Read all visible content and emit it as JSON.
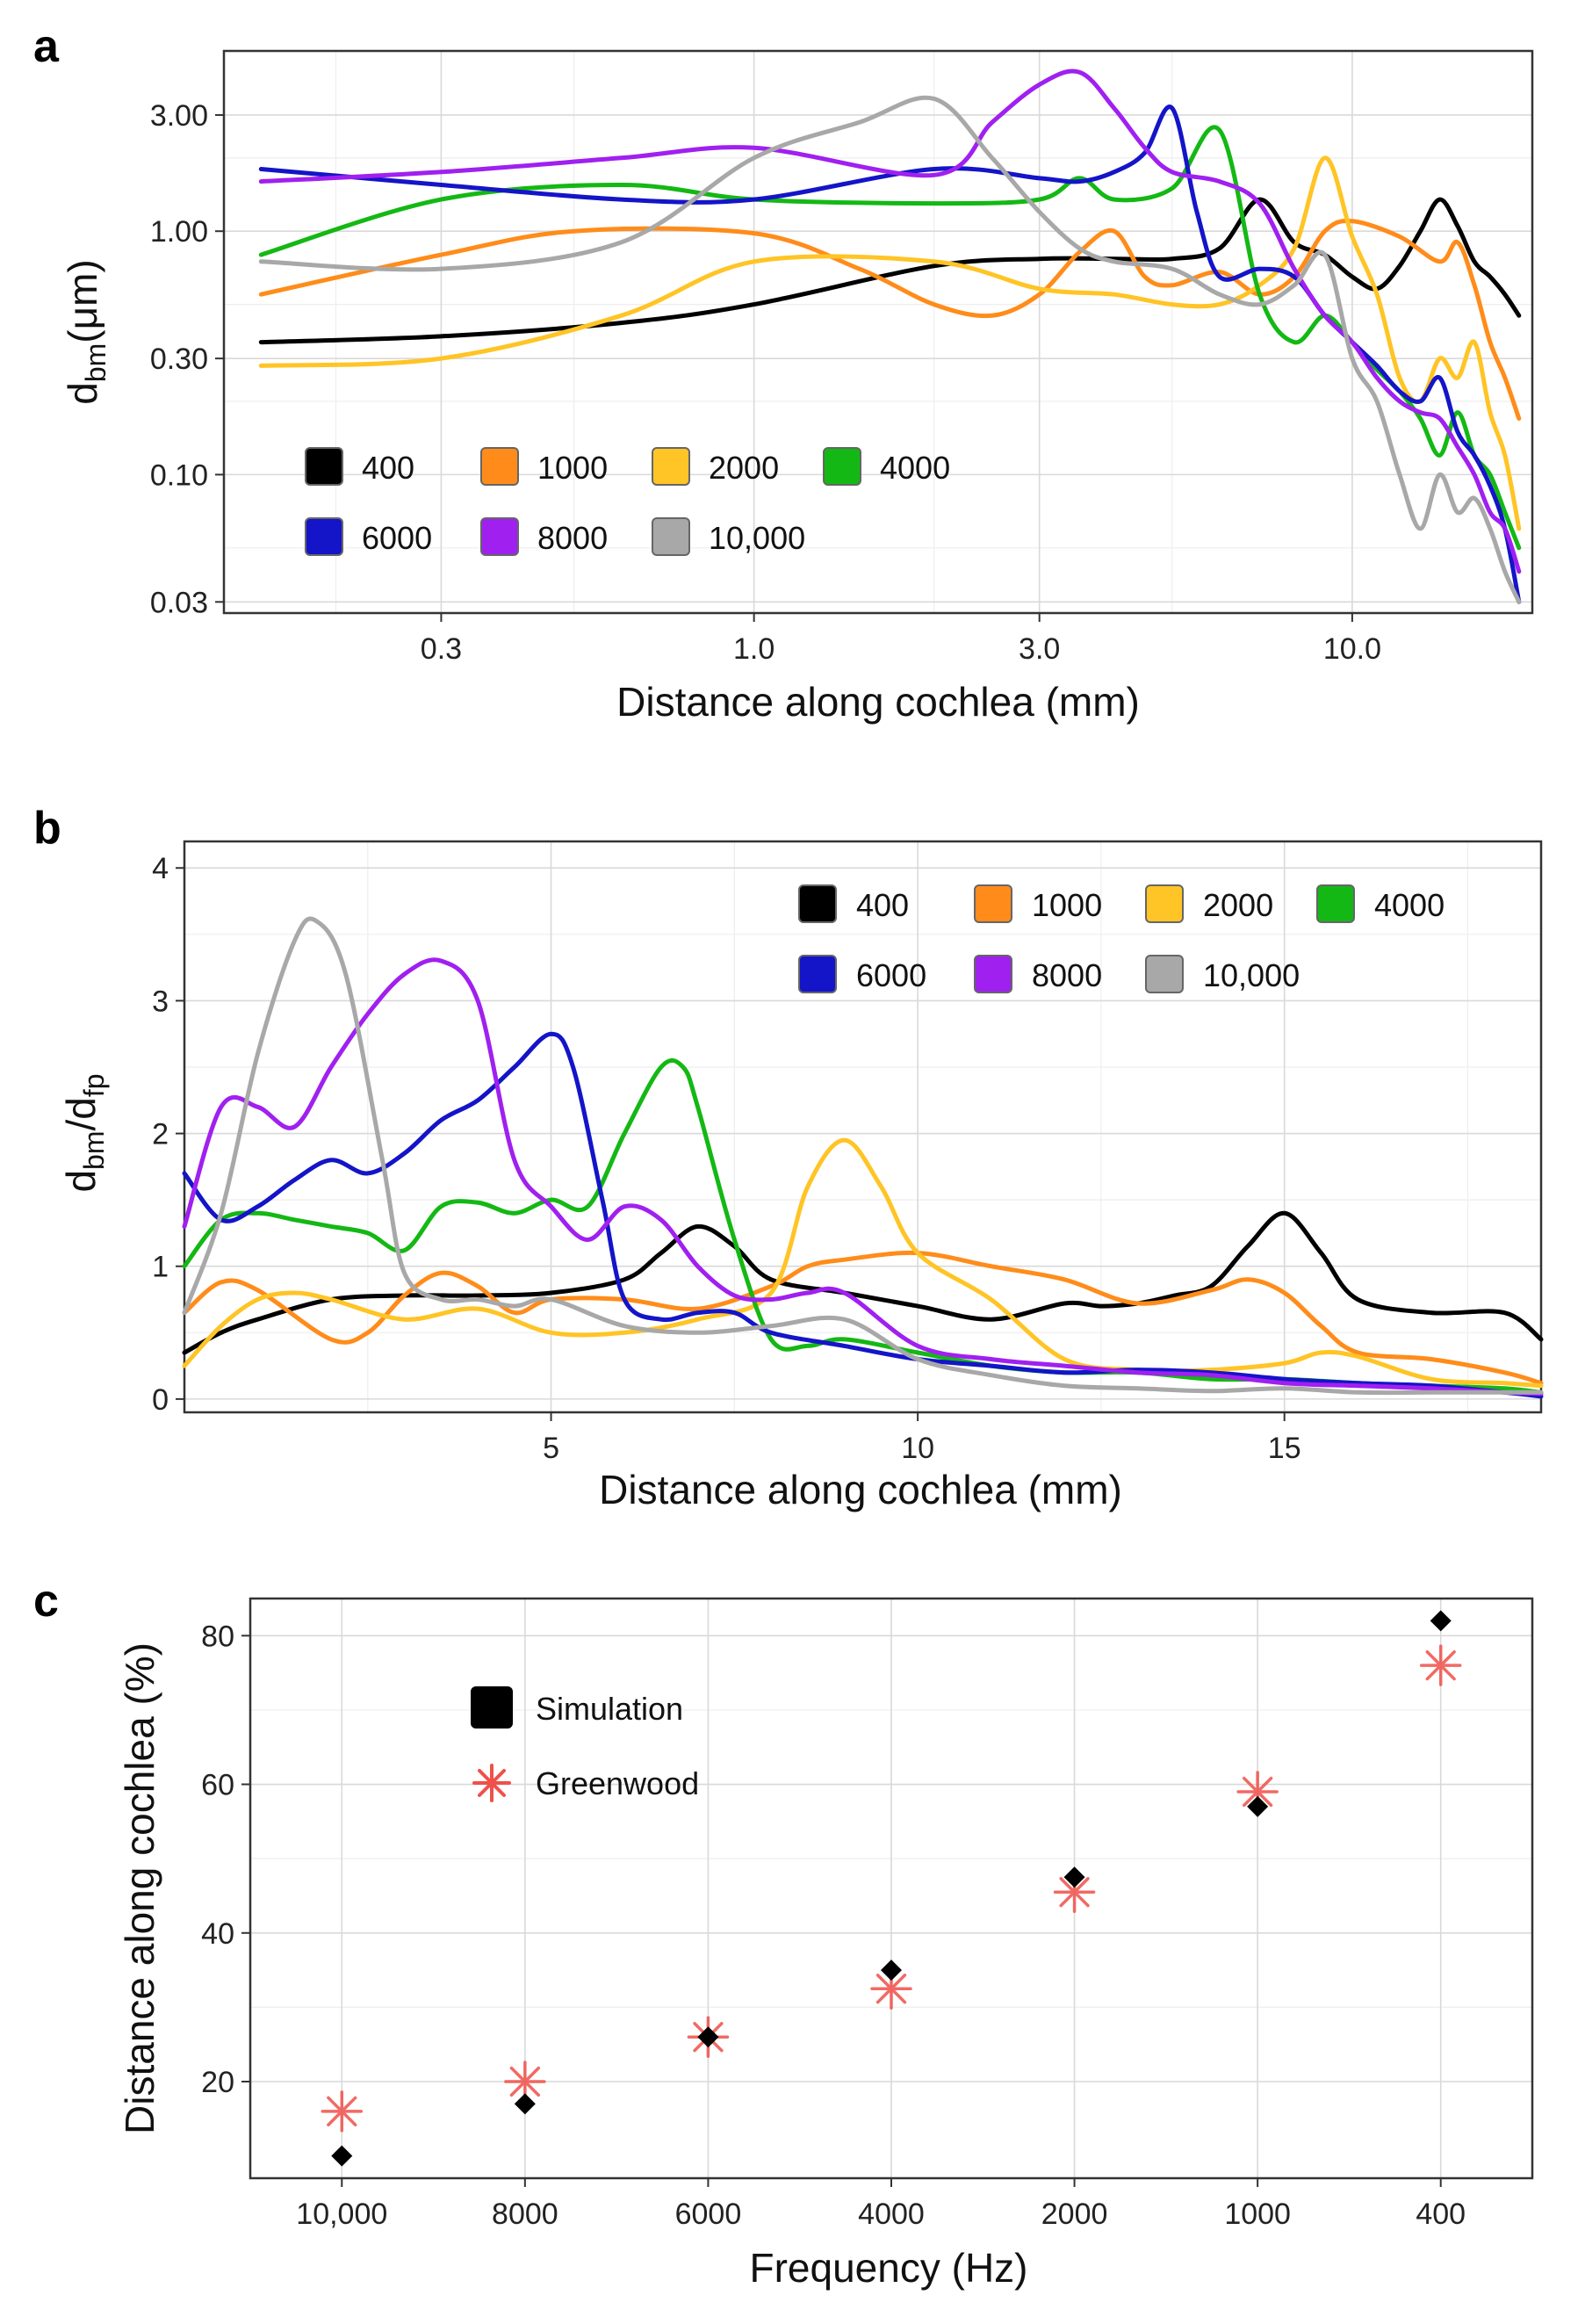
{
  "figure": {
    "colors": {
      "400": "#000000",
      "1000": "#ff8c1a",
      "2000": "#ffc425",
      "4000": "#14b814",
      "6000": "#1414c8",
      "8000": "#a020f0",
      "10000": "#a8a8a8",
      "simulation": "#000000",
      "greenwood": "#f0504a"
    }
  },
  "chart_data": [
    {
      "panel": "a",
      "type": "line",
      "x_scale": "log",
      "y_scale": "log",
      "xlabel": "Distance along cochlea (mm)",
      "ylabel_main": "d",
      "ylabel_sub": "bm",
      "ylabel_unit": "(μm)",
      "xlim": [
        0.13,
        20
      ],
      "ylim": [
        0.027,
        5.5
      ],
      "xticks": [
        0.3,
        1.0,
        3.0,
        10.0
      ],
      "xtick_labels": [
        "0.3",
        "1.0",
        "3.0",
        "10.0"
      ],
      "yticks": [
        0.03,
        0.1,
        0.3,
        1.0,
        3.0
      ],
      "ytick_labels": [
        "0.03",
        "0.10",
        "0.30",
        "1.00",
        "3.00"
      ],
      "legend": {
        "position": "bottom-left",
        "columns": 4,
        "entries": [
          "400",
          "1000",
          "2000",
          "4000",
          "6000",
          "8000",
          "10,000"
        ]
      },
      "series": [
        {
          "name": "400",
          "key": "400",
          "x": [
            0.15,
            0.3,
            0.6,
            1,
            2,
            3,
            4,
            5,
            6,
            7,
            8,
            9,
            10,
            11,
            12,
            13,
            14,
            15,
            16,
            17,
            18,
            19
          ],
          "y": [
            0.35,
            0.37,
            0.42,
            0.5,
            0.72,
            0.77,
            0.77,
            0.77,
            0.85,
            1.35,
            0.9,
            0.8,
            0.65,
            0.58,
            0.72,
            1.0,
            1.35,
            1.05,
            0.75,
            0.65,
            0.55,
            0.45
          ]
        },
        {
          "name": "1000",
          "key": "1000",
          "x": [
            0.15,
            0.3,
            0.5,
            1,
            1.5,
            2,
            2.5,
            3,
            3.5,
            4,
            4.5,
            5,
            6,
            7,
            8,
            9,
            10,
            12,
            14,
            15,
            16,
            17,
            18,
            19
          ],
          "y": [
            0.55,
            0.8,
            1.0,
            0.98,
            0.7,
            0.5,
            0.45,
            0.55,
            0.82,
            1.0,
            0.65,
            0.6,
            0.68,
            0.55,
            0.65,
            1.0,
            1.1,
            0.95,
            0.75,
            0.9,
            0.6,
            0.35,
            0.25,
            0.17
          ]
        },
        {
          "name": "2000",
          "key": "2000",
          "x": [
            0.15,
            0.3,
            0.6,
            1,
            2,
            3,
            4,
            5,
            6,
            7,
            8,
            9,
            10,
            11,
            12,
            13,
            14,
            15,
            16,
            17,
            18,
            19
          ],
          "y": [
            0.28,
            0.3,
            0.45,
            0.75,
            0.75,
            0.58,
            0.55,
            0.5,
            0.5,
            0.6,
            0.85,
            2.0,
            0.95,
            0.55,
            0.25,
            0.2,
            0.3,
            0.25,
            0.35,
            0.18,
            0.12,
            0.06
          ]
        },
        {
          "name": "4000",
          "key": "4000",
          "x": [
            0.15,
            0.3,
            0.6,
            1,
            2,
            3,
            3.5,
            4,
            5,
            6,
            7,
            8,
            9,
            10,
            11,
            12,
            13,
            14,
            15,
            16,
            17,
            18,
            19
          ],
          "y": [
            0.8,
            1.35,
            1.55,
            1.35,
            1.3,
            1.35,
            1.65,
            1.35,
            1.5,
            2.6,
            0.55,
            0.35,
            0.45,
            0.35,
            0.27,
            0.22,
            0.17,
            0.12,
            0.18,
            0.12,
            0.1,
            0.07,
            0.05
          ]
        },
        {
          "name": "6000",
          "key": "6000",
          "x": [
            0.15,
            0.3,
            0.6,
            1,
            2,
            3,
            3.5,
            4,
            4.5,
            5,
            5.5,
            6,
            7,
            8,
            9,
            10,
            11,
            12,
            13,
            14,
            15,
            16,
            17,
            18,
            19
          ],
          "y": [
            1.8,
            1.55,
            1.35,
            1.35,
            1.8,
            1.65,
            1.6,
            1.75,
            2.1,
            3.2,
            1.2,
            0.65,
            0.7,
            0.65,
            0.45,
            0.35,
            0.28,
            0.22,
            0.2,
            0.25,
            0.15,
            0.12,
            0.09,
            0.06,
            0.03
          ]
        },
        {
          "name": "8000",
          "key": "8000",
          "x": [
            0.15,
            0.3,
            0.6,
            1,
            2,
            2.5,
            3,
            3.5,
            4,
            4.5,
            5,
            6,
            7,
            8,
            9,
            10,
            11,
            12,
            13,
            14,
            15,
            16,
            17,
            18,
            19
          ],
          "y": [
            1.6,
            1.75,
            2.0,
            2.2,
            1.7,
            2.8,
            4.0,
            4.5,
            3.2,
            2.2,
            1.75,
            1.6,
            1.3,
            0.7,
            0.45,
            0.35,
            0.25,
            0.2,
            0.18,
            0.17,
            0.13,
            0.1,
            0.07,
            0.06,
            0.04
          ]
        },
        {
          "name": "10,000",
          "key": "10000",
          "x": [
            0.15,
            0.3,
            0.6,
            1,
            1.5,
            2,
            2.5,
            3,
            3.5,
            4,
            5,
            6,
            7,
            8,
            9,
            10,
            11,
            12,
            13,
            14,
            15,
            16,
            17,
            18,
            19
          ],
          "y": [
            0.75,
            0.7,
            0.9,
            2.0,
            2.8,
            3.5,
            2.0,
            1.2,
            0.85,
            0.75,
            0.7,
            0.55,
            0.5,
            0.6,
            0.8,
            0.3,
            0.2,
            0.1,
            0.06,
            0.1,
            0.07,
            0.08,
            0.06,
            0.04,
            0.03
          ]
        }
      ]
    },
    {
      "panel": "b",
      "type": "line",
      "xlabel": "Distance along cochlea (mm)",
      "ylabel_main": "d",
      "ylabel_sub": "bm",
      "ylabel_main2": "d",
      "ylabel_sub2": "fp",
      "xlim": [
        0,
        18.5
      ],
      "ylim": [
        -0.1,
        4.2
      ],
      "xticks": [
        5,
        10,
        15
      ],
      "xtick_labels": [
        "5",
        "10",
        "15"
      ],
      "yticks": [
        0,
        1,
        2,
        3,
        4
      ],
      "ytick_labels": [
        "0",
        "1",
        "2",
        "3",
        "4"
      ],
      "legend": {
        "position": "top-right",
        "columns": 4,
        "entries": [
          "400",
          "1000",
          "2000",
          "4000",
          "6000",
          "8000",
          "10,000"
        ]
      },
      "series": [
        {
          "name": "400",
          "key": "400",
          "x": [
            0,
            0.5,
            1,
            2,
            3,
            4,
            5,
            6,
            6.5,
            7,
            7.5,
            8,
            9,
            10,
            11,
            12,
            12.5,
            13,
            13.5,
            14,
            14.5,
            15,
            15.5,
            16,
            17,
            18,
            18.5
          ],
          "y": [
            0.35,
            0.5,
            0.6,
            0.75,
            0.78,
            0.78,
            0.8,
            0.9,
            1.1,
            1.3,
            1.15,
            0.9,
            0.8,
            0.7,
            0.6,
            0.72,
            0.7,
            0.72,
            0.78,
            0.85,
            1.15,
            1.4,
            1.1,
            0.75,
            0.65,
            0.65,
            0.45
          ]
        },
        {
          "name": "1000",
          "key": "1000",
          "x": [
            0,
            0.5,
            1,
            2,
            2.5,
            3,
            3.5,
            4,
            4.5,
            5,
            6,
            7,
            8,
            8.5,
            9,
            10,
            11,
            12,
            13,
            14,
            14.5,
            15,
            15.5,
            16,
            17,
            18,
            18.5
          ],
          "y": [
            0.65,
            0.88,
            0.82,
            0.45,
            0.5,
            0.78,
            0.95,
            0.85,
            0.65,
            0.75,
            0.75,
            0.68,
            0.85,
            1.0,
            1.05,
            1.1,
            1.0,
            0.9,
            0.72,
            0.82,
            0.9,
            0.8,
            0.55,
            0.35,
            0.3,
            0.2,
            0.12
          ]
        },
        {
          "name": "2000",
          "key": "2000",
          "x": [
            0,
            0.5,
            1,
            1.5,
            2,
            3,
            4,
            5,
            6,
            7,
            8,
            8.5,
            9,
            9.5,
            10,
            11,
            12,
            13,
            14,
            15,
            15.5,
            16,
            17,
            18,
            18.5
          ],
          "y": [
            0.25,
            0.55,
            0.75,
            0.8,
            0.75,
            0.6,
            0.68,
            0.5,
            0.5,
            0.6,
            0.8,
            1.6,
            1.95,
            1.6,
            1.1,
            0.75,
            0.3,
            0.22,
            0.22,
            0.27,
            0.35,
            0.32,
            0.15,
            0.12,
            0.1
          ]
        },
        {
          "name": "4000",
          "key": "4000",
          "x": [
            0,
            0.5,
            1,
            1.5,
            2,
            2.5,
            3,
            3.5,
            4,
            4.5,
            5,
            5.5,
            6,
            6.5,
            6.8,
            7,
            7.5,
            8,
            8.5,
            9,
            10,
            11,
            12,
            13,
            14,
            15,
            16,
            17,
            18,
            18.5
          ],
          "y": [
            1.0,
            1.35,
            1.4,
            1.35,
            1.3,
            1.25,
            1.12,
            1.45,
            1.48,
            1.4,
            1.5,
            1.45,
            2.0,
            2.5,
            2.5,
            2.2,
            1.2,
            0.45,
            0.4,
            0.45,
            0.35,
            0.25,
            0.2,
            0.2,
            0.15,
            0.15,
            0.12,
            0.1,
            0.08,
            0.05
          ]
        },
        {
          "name": "6000",
          "key": "6000",
          "x": [
            0,
            0.5,
            1,
            1.5,
            2,
            2.5,
            3,
            3.5,
            4,
            4.5,
            5,
            5.3,
            5.7,
            6,
            6.5,
            7,
            7.5,
            8,
            9,
            10,
            11,
            12,
            13,
            14,
            15,
            16,
            17,
            18,
            18.5
          ],
          "y": [
            1.7,
            1.35,
            1.45,
            1.65,
            1.8,
            1.7,
            1.85,
            2.1,
            2.25,
            2.5,
            2.75,
            2.5,
            1.5,
            0.75,
            0.6,
            0.65,
            0.65,
            0.5,
            0.4,
            0.3,
            0.25,
            0.2,
            0.22,
            0.2,
            0.15,
            0.12,
            0.1,
            0.05,
            0.02
          ]
        },
        {
          "name": "8000",
          "key": "8000",
          "x": [
            0,
            0.5,
            1,
            1.5,
            2,
            2.5,
            3,
            3.5,
            4,
            4.5,
            5,
            5.5,
            6,
            6.5,
            7,
            7.5,
            8,
            8.5,
            9,
            10,
            11,
            12,
            13,
            14,
            15,
            16,
            17,
            18,
            18.5
          ],
          "y": [
            1.3,
            2.2,
            2.2,
            2.05,
            2.5,
            2.9,
            3.2,
            3.3,
            3.0,
            1.8,
            1.45,
            1.2,
            1.45,
            1.35,
            1.0,
            0.78,
            0.75,
            0.8,
            0.8,
            0.4,
            0.3,
            0.25,
            0.2,
            0.18,
            0.12,
            0.1,
            0.08,
            0.05,
            0.04
          ]
        },
        {
          "name": "10,000",
          "key": "10000",
          "x": [
            0,
            0.5,
            1,
            1.5,
            1.8,
            2.2,
            2.7,
            3,
            3.5,
            4,
            4.5,
            5,
            6,
            7,
            8,
            9,
            10,
            11,
            12,
            13,
            14,
            15,
            16,
            17,
            18,
            18.5
          ],
          "y": [
            0.65,
            1.4,
            2.6,
            3.45,
            3.6,
            3.2,
            1.8,
            0.95,
            0.75,
            0.75,
            0.7,
            0.75,
            0.55,
            0.5,
            0.55,
            0.6,
            0.3,
            0.18,
            0.1,
            0.08,
            0.06,
            0.08,
            0.05,
            0.05,
            0.05,
            0.05
          ]
        }
      ]
    },
    {
      "panel": "c",
      "type": "scatter",
      "xlabel": "Frequency (Hz)",
      "ylabel": "Distance along cochlea (%)",
      "categories": [
        "10,000",
        "8000",
        "6000",
        "4000",
        "2000",
        "1000",
        "400"
      ],
      "ylim": [
        7,
        85
      ],
      "yticks": [
        20,
        40,
        60,
        80
      ],
      "ytick_labels": [
        "20",
        "40",
        "60",
        "80"
      ],
      "legend": {
        "position": "top-left",
        "entries": [
          "Simulation",
          "Greenwood"
        ]
      },
      "series": [
        {
          "name": "Simulation",
          "marker": "diamond",
          "values": [
            10,
            17,
            26,
            35,
            47.5,
            57,
            82
          ]
        },
        {
          "name": "Greenwood",
          "marker": "asterisk",
          "values": [
            16,
            20,
            26,
            32.5,
            45.5,
            59,
            76
          ]
        }
      ]
    }
  ]
}
